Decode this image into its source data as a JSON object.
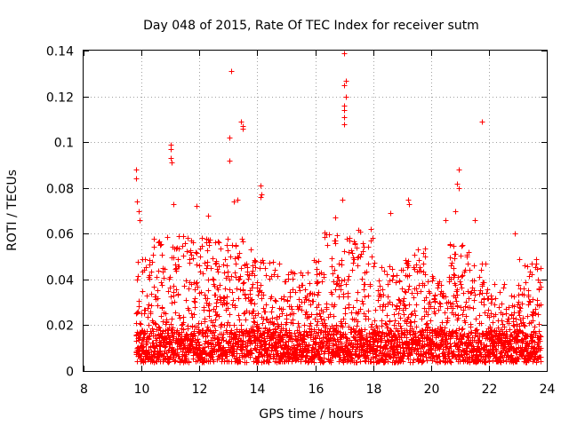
{
  "chart_data": {
    "type": "scatter",
    "title": "Day 048 of 2015, Rate Of TEC Index for receiver sutm",
    "xlabel": "GPS time / hours",
    "ylabel": "ROTI / TECUs",
    "xlim": [
      8,
      24
    ],
    "ylim": [
      0,
      0.14
    ],
    "xticks": [
      "8",
      "10",
      "12",
      "14",
      "16",
      "18",
      "20",
      "22",
      "24"
    ],
    "yticks": [
      "0",
      "0.02",
      "0.04",
      "0.06",
      "0.08",
      "0.1",
      "0.12",
      "0.14"
    ],
    "xtick_values": [
      8,
      10,
      12,
      14,
      16,
      18,
      20,
      22,
      24
    ],
    "ytick_values": [
      0,
      0.02,
      0.04,
      0.06,
      0.08,
      0.1,
      0.12,
      0.14
    ],
    "grid": true,
    "marker": "+",
    "color": "#ff0000",
    "data_range": [
      9.8,
      23.8
    ],
    "series": [
      {
        "name": "ROTI",
        "outliers": [
          [
            9.8,
            0.088
          ],
          [
            9.8,
            0.084
          ],
          [
            9.85,
            0.074
          ],
          [
            9.9,
            0.07
          ],
          [
            9.95,
            0.066
          ],
          [
            11.0,
            0.099
          ],
          [
            11.0,
            0.097
          ],
          [
            11.0,
            0.093
          ],
          [
            11.05,
            0.091
          ],
          [
            11.1,
            0.073
          ],
          [
            11.9,
            0.072
          ],
          [
            12.3,
            0.068
          ],
          [
            13.1,
            0.131
          ],
          [
            13.05,
            0.102
          ],
          [
            13.05,
            0.092
          ],
          [
            13.2,
            0.074
          ],
          [
            13.3,
            0.075
          ],
          [
            13.45,
            0.109
          ],
          [
            13.5,
            0.107
          ],
          [
            13.5,
            0.106
          ],
          [
            14.1,
            0.081
          ],
          [
            14.15,
            0.077
          ],
          [
            14.1,
            0.076
          ],
          [
            16.7,
            0.067
          ],
          [
            17.0,
            0.139
          ],
          [
            17.05,
            0.127
          ],
          [
            17.0,
            0.125
          ],
          [
            17.05,
            0.12
          ],
          [
            17.0,
            0.116
          ],
          [
            17.0,
            0.114
          ],
          [
            17.0,
            0.111
          ],
          [
            17.0,
            0.108
          ],
          [
            16.95,
            0.075
          ],
          [
            18.6,
            0.069
          ],
          [
            19.2,
            0.075
          ],
          [
            19.25,
            0.073
          ],
          [
            20.95,
            0.088
          ],
          [
            20.9,
            0.082
          ],
          [
            20.95,
            0.08
          ],
          [
            20.85,
            0.07
          ],
          [
            20.5,
            0.066
          ],
          [
            21.5,
            0.066
          ],
          [
            21.75,
            0.109
          ],
          [
            22.9,
            0.06
          ]
        ]
      }
    ]
  }
}
